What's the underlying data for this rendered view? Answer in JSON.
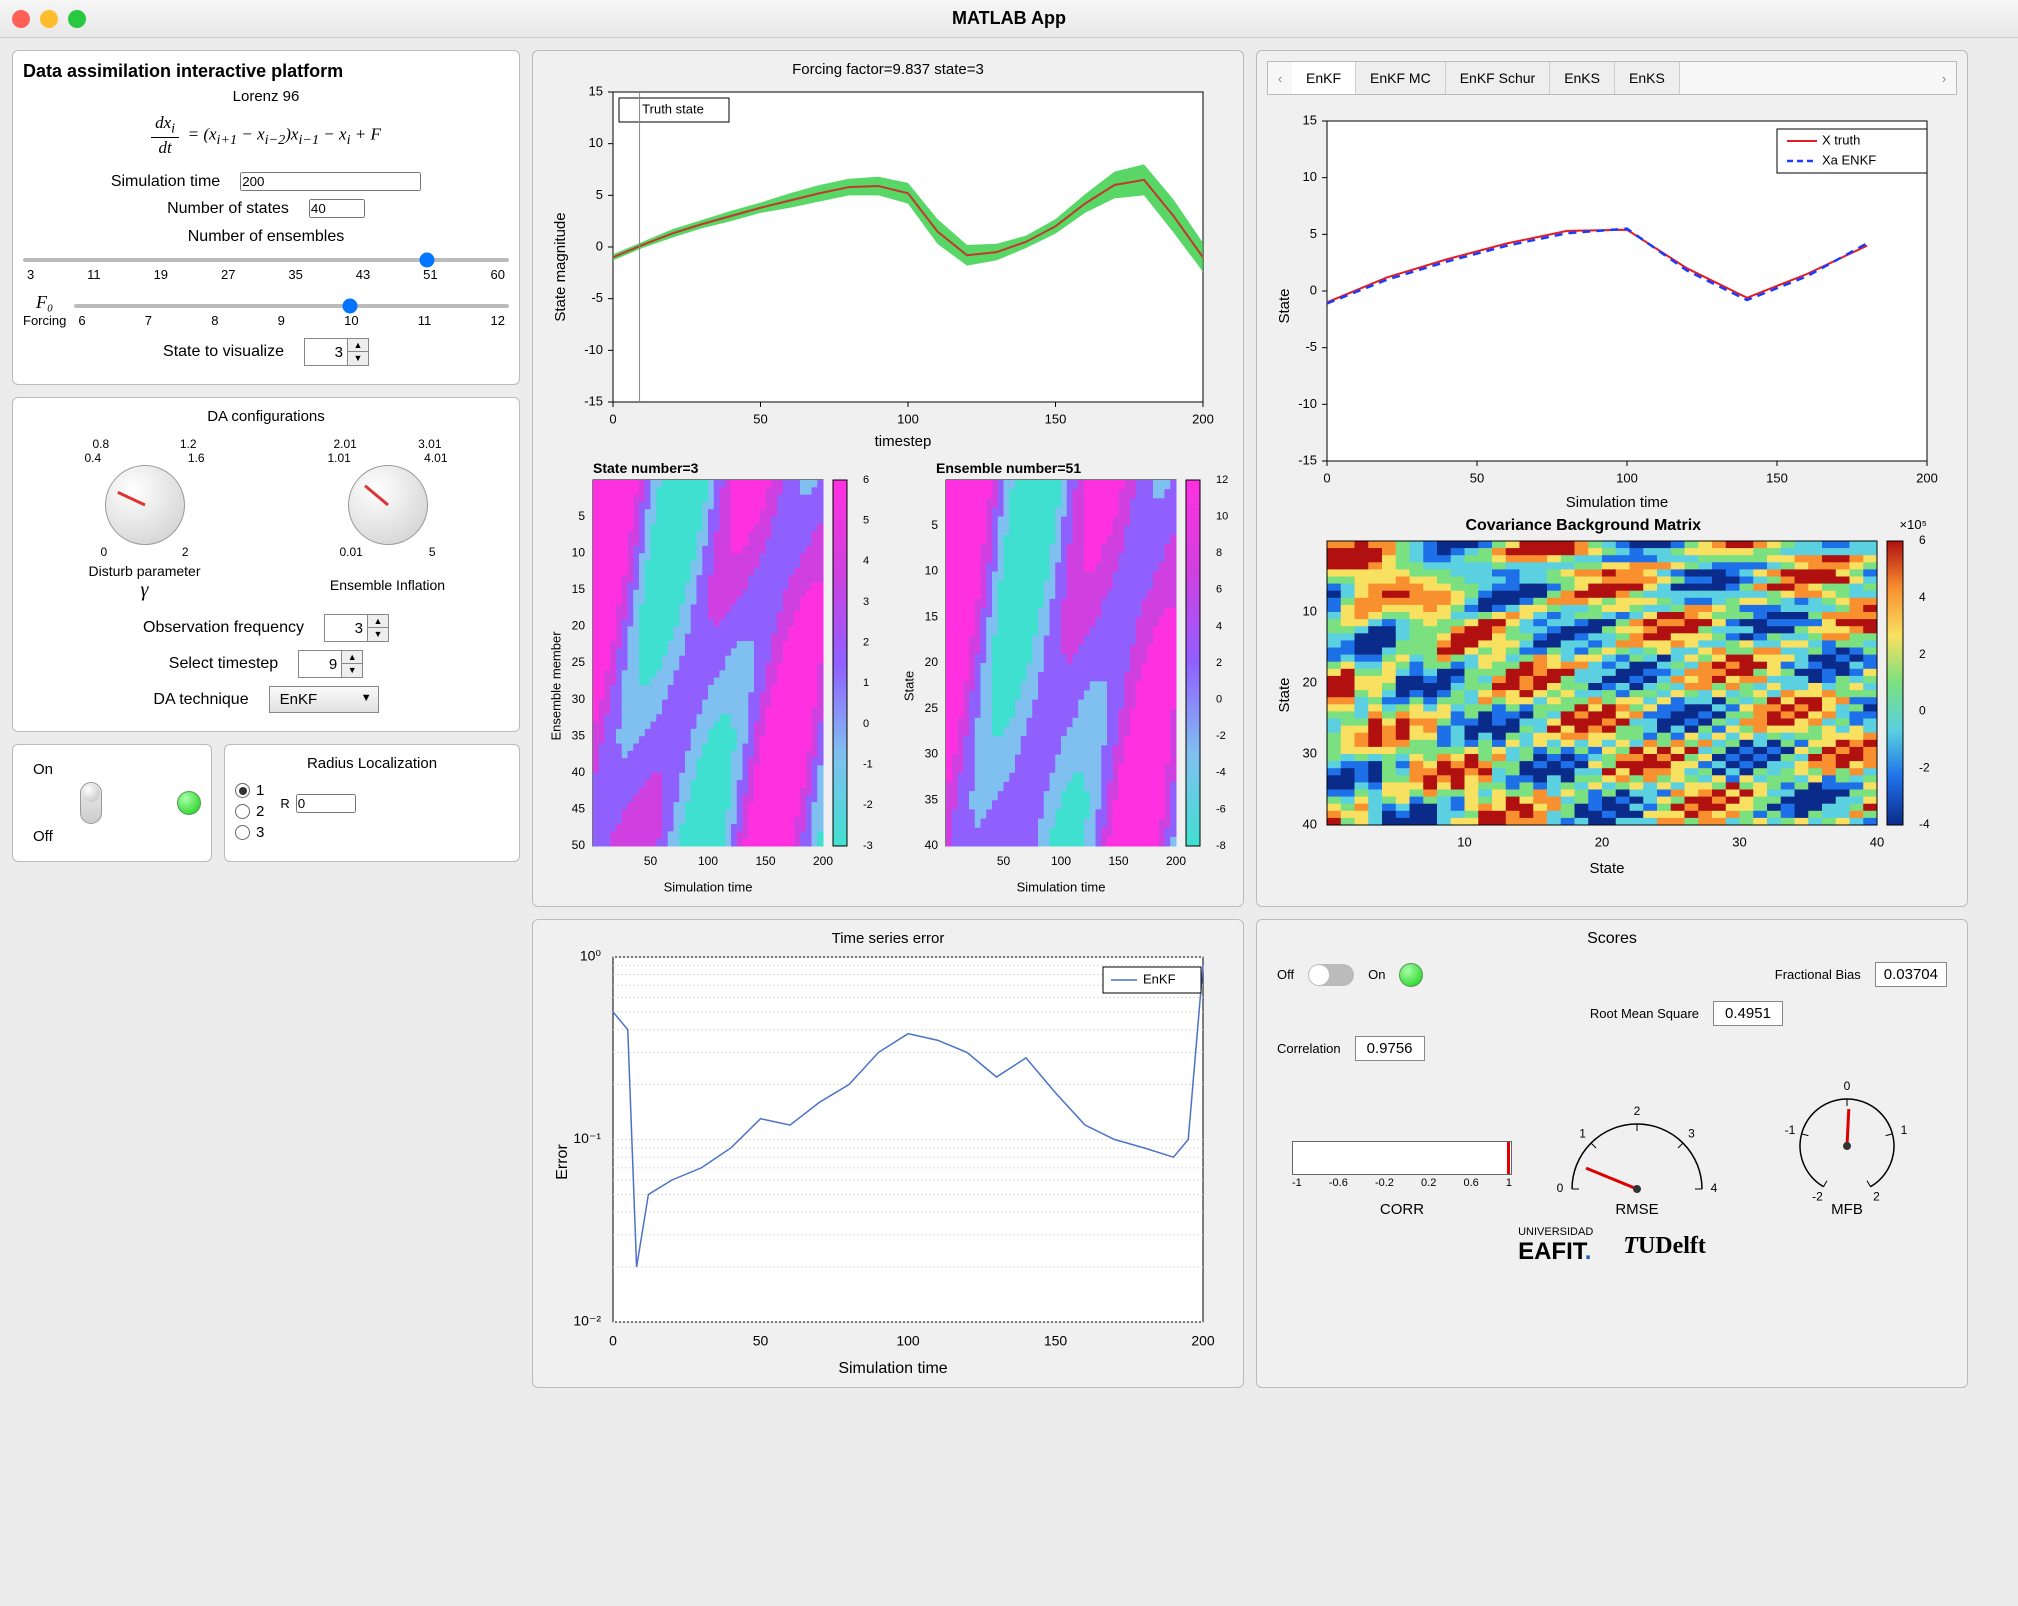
{
  "window": {
    "title": "MATLAB App"
  },
  "left": {
    "panel1": {
      "title": "Data assimilation interactive platform",
      "model_name": "Lorenz 96",
      "sim_time_label": "Simulation time",
      "sim_time": "200",
      "nstates_label": "Number of states",
      "nstates": "40",
      "nens_label": "Number of ensembles",
      "nens_ticks": [
        "3",
        "11",
        "19",
        "27",
        "35",
        "43",
        "51",
        "60"
      ],
      "nens_value": 51,
      "forcing_label": "Forcing",
      "f0_label": "F₀",
      "forcing_ticks": [
        "6",
        "7",
        "8",
        "9",
        "10",
        "11",
        "12"
      ],
      "forcing_value": 9.837,
      "state_viz_label": "State to visualize",
      "state_viz": "3"
    },
    "panel2": {
      "title": "DA configurations",
      "knob1": {
        "label": "Disturb parameter",
        "sym": "γ",
        "ticks": [
          "0",
          "0.4",
          "0.8",
          "1.2",
          "1.6",
          "2"
        ],
        "angle": 210
      },
      "knob2": {
        "label": "Ensemble Inflation",
        "ticks": [
          "0.01",
          "1.01",
          "2.01",
          "3.01",
          "4.01",
          "5"
        ],
        "angle": 195
      },
      "obsfreq_label": "Observation frequency",
      "obsfreq": "3",
      "timestep_label": "Select timestep",
      "timestep": "9",
      "datech_label": "DA technique",
      "datech": "EnKF"
    },
    "panel3": {
      "on": "On",
      "off": "Off"
    },
    "panel4": {
      "title": "Radius Localization",
      "options": [
        "1",
        "2",
        "3"
      ],
      "selected": 0,
      "r_label": "R",
      "r_value": "0"
    }
  },
  "mid_top": {
    "line_chart": {
      "title": "Forcing factor=9.837 state=3",
      "legend": "Truth state",
      "xlabel": "timestep",
      "ylabel": "State magnitude",
      "xlim": [
        0,
        200
      ],
      "ylim": [
        -15,
        15
      ],
      "xticks": [
        0,
        50,
        100,
        150,
        200
      ],
      "yticks": [
        -15,
        -10,
        -5,
        0,
        5,
        10,
        15
      ],
      "truth_color": "#c0392b",
      "spread_color": "#2ecc40",
      "x": [
        0,
        10,
        20,
        30,
        40,
        50,
        60,
        70,
        80,
        90,
        100,
        110,
        120,
        130,
        140,
        150,
        160,
        170,
        180,
        190,
        200
      ],
      "y": [
        -1,
        0.2,
        1.3,
        2.2,
        3.0,
        3.8,
        4.5,
        5.2,
        5.8,
        5.9,
        5.2,
        1.5,
        -0.8,
        -0.5,
        0.5,
        2.0,
        4.2,
        6.0,
        6.5,
        3.0,
        -1.0
      ],
      "spread": [
        0.3,
        0.3,
        0.4,
        0.4,
        0.5,
        0.5,
        0.7,
        0.8,
        0.8,
        0.9,
        1.0,
        1.2,
        1.0,
        0.8,
        0.6,
        0.7,
        0.9,
        1.3,
        1.5,
        1.6,
        1.4
      ]
    },
    "heat1": {
      "title": "State number=3",
      "xlabel": "Simulation time",
      "ylabel": "Ensemble member",
      "xticks": [
        50,
        100,
        150,
        200
      ],
      "yticks": [
        5,
        10,
        15,
        20,
        25,
        30,
        35,
        40,
        45,
        50
      ],
      "cticks": [
        -3,
        -2,
        -1,
        0,
        1,
        2,
        3,
        4,
        5,
        6
      ],
      "cmap": [
        "#40e0d0",
        "#80c0f0",
        "#9060ff",
        "#d040e0",
        "#ff30e0"
      ]
    },
    "heat2": {
      "title": "Ensemble number=51",
      "xlabel": "Simulation time",
      "ylabel": "State",
      "xticks": [
        50,
        100,
        150,
        200
      ],
      "yticks": [
        5,
        10,
        15,
        20,
        25,
        30,
        35,
        40
      ],
      "cticks": [
        -8,
        -6,
        -4,
        -2,
        0,
        2,
        4,
        6,
        8,
        10,
        12
      ],
      "cmap": [
        "#40e0d0",
        "#80c0f0",
        "#9060ff",
        "#d040e0",
        "#ff30e0"
      ]
    }
  },
  "right_top": {
    "tabs": [
      "EnKF",
      "EnKF MC",
      "EnKF Schur",
      "EnKS",
      "EnKS"
    ],
    "active": 0,
    "line_chart": {
      "legend": [
        "X truth",
        "Xa ENKF"
      ],
      "colors": [
        "#e51c23",
        "#1a3cff"
      ],
      "xlabel": "Simulation time",
      "ylabel": "State",
      "xlim": [
        0,
        200
      ],
      "ylim": [
        -15,
        15
      ],
      "xticks": [
        0,
        50,
        100,
        150,
        200
      ],
      "yticks": [
        -15,
        -10,
        -5,
        0,
        5,
        10,
        15
      ],
      "x": [
        0,
        20,
        40,
        60,
        80,
        100,
        120,
        140,
        160,
        180
      ],
      "truth": [
        -1,
        1.2,
        2.8,
        4.2,
        5.3,
        5.4,
        2.0,
        -0.6,
        1.5,
        4.0
      ],
      "xa": [
        -1.1,
        1.0,
        2.6,
        4.0,
        5.1,
        5.5,
        1.8,
        -0.8,
        1.3,
        4.2
      ]
    },
    "cov": {
      "title": "Covariance Background Matrix",
      "exp": "×10⁵",
      "xlabel": "State",
      "ylabel": "State",
      "xticks": [
        10,
        20,
        30,
        40
      ],
      "yticks": [
        10,
        20,
        30,
        40
      ],
      "cticks": [
        -4,
        -2,
        0,
        2,
        4,
        6
      ],
      "cmap": [
        "#0b2b8a",
        "#1e70e8",
        "#5ad0e0",
        "#7be080",
        "#f8e060",
        "#f89030",
        "#b01010"
      ]
    }
  },
  "mid_bot": {
    "title": "Time series error",
    "legend": "EnKF",
    "xlabel": "Simulation time",
    "ylabel": "Error",
    "xlim": [
      0,
      200
    ],
    "ylog": [
      -2,
      0
    ],
    "xticks": [
      0,
      50,
      100,
      150,
      200
    ],
    "yticks": [
      "10⁻²",
      "10⁻¹",
      "10⁰"
    ],
    "color": "#4a72c8",
    "x": [
      0,
      5,
      8,
      12,
      20,
      30,
      40,
      50,
      60,
      70,
      80,
      90,
      100,
      110,
      120,
      130,
      140,
      150,
      160,
      170,
      180,
      190,
      195,
      200
    ],
    "y": [
      0.5,
      0.4,
      0.02,
      0.05,
      0.06,
      0.07,
      0.09,
      0.13,
      0.12,
      0.16,
      0.2,
      0.3,
      0.38,
      0.35,
      0.3,
      0.22,
      0.28,
      0.18,
      0.12,
      0.1,
      0.09,
      0.08,
      0.1,
      0.9
    ]
  },
  "scores": {
    "title": "Scores",
    "off": "Off",
    "on": "On",
    "frac_bias_label": "Fractional Bias",
    "frac_bias": "0.03704",
    "rms_label": "Root Mean Square",
    "rms": "0.4951",
    "corr_label": "Correlation",
    "corr": "0.9756",
    "gauge1": {
      "label": "CORR",
      "ticks": [
        "-1",
        "-0.6",
        "-0.2",
        "0.2",
        "0.6",
        "1"
      ],
      "value": 0.9756
    },
    "gauge2": {
      "label": "RMSE",
      "ticks": [
        "0",
        "1",
        "2",
        "3",
        "4"
      ],
      "value": 0.4951
    },
    "gauge3": {
      "label": "MFB",
      "ticks": [
        "-2",
        "-1",
        "0",
        "1",
        "2"
      ],
      "value": 0.037
    },
    "logo1": "UNIVERSIDAD EAFIT",
    "logo2": "TUDelft"
  }
}
